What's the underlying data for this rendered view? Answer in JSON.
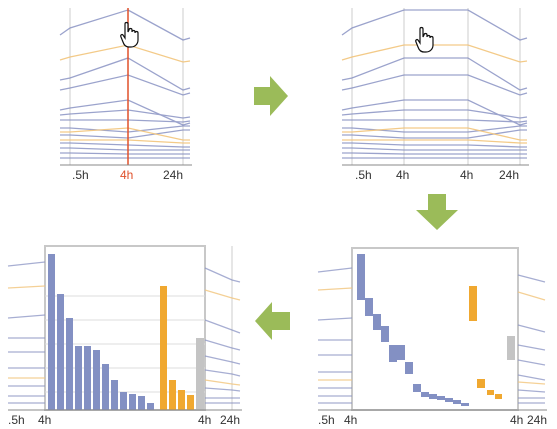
{
  "colors": {
    "blue_line": "#8a93c4",
    "orange_line": "#f2c57c",
    "orange_bar": "#f0a830",
    "blue_bar": "#8390c3",
    "gray_bar": "#c4c4c4",
    "arrow": "#9bbb59",
    "red_marker": "#e0502a",
    "axis": "#888888"
  },
  "cursor_icon": "hand-pointer-icon",
  "arrows": [
    "arrow-right-icon",
    "arrow-down-icon",
    "arrow-left-icon"
  ],
  "panels": [
    {
      "name": "panel-top-left",
      "ticks": [
        {
          "text": ".5h",
          "highlight": false
        },
        {
          "text": "4h",
          "highlight": true
        },
        {
          "text": "24h",
          "highlight": false
        }
      ]
    },
    {
      "name": "panel-top-right",
      "ticks": [
        {
          "text": ".5h",
          "highlight": false
        },
        {
          "text": "4h",
          "highlight": false
        },
        {
          "text": "4h",
          "highlight": false
        },
        {
          "text": "24h",
          "highlight": false
        }
      ]
    },
    {
      "name": "panel-bottom-right",
      "ticks": [
        {
          "text": ".5h",
          "highlight": false
        },
        {
          "text": "4h",
          "highlight": false
        },
        {
          "text": "4h",
          "highlight": false
        },
        {
          "text": "24h",
          "highlight": false
        }
      ]
    },
    {
      "name": "panel-bottom-left",
      "ticks": [
        {
          "text": ".5h",
          "highlight": false
        },
        {
          "text": "4h",
          "highlight": false
        },
        {
          "text": "4h",
          "highlight": false
        },
        {
          "text": "24h",
          "highlight": false
        }
      ]
    }
  ]
}
